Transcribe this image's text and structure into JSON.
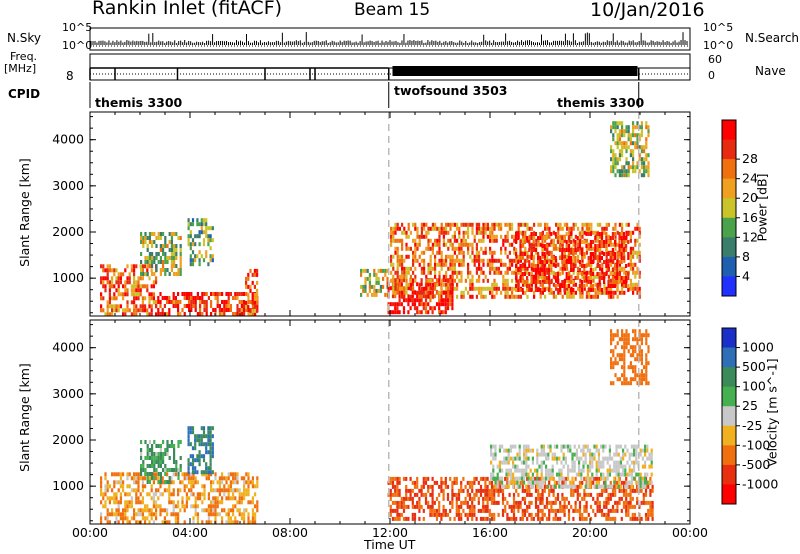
{
  "header": {
    "station": "Rankin Inlet (fitACF)",
    "beam": "Beam 15",
    "date": "10/Jan/2016"
  },
  "top_panels": {
    "nsky_label": "N.Sky",
    "nsky_ticks_left": [
      "10^5",
      "10^0"
    ],
    "nsearch_ticks_right": [
      "10^5",
      "10^0"
    ],
    "nsearch_label": "N.Search",
    "freq_label_line1": "Freq.",
    "freq_label_line2": "[MHz]",
    "freq_ticks_left": [
      "8"
    ],
    "nave_ticks_right": [
      "60",
      "0"
    ],
    "nave_label": "Nave",
    "cpid_label": "CPID",
    "cpid_segments": [
      {
        "name": "themis 3300",
        "start_h": 0,
        "end_h": 11.95
      },
      {
        "name": "twofsound 3503",
        "start_h": 11.95,
        "end_h": 21.95
      },
      {
        "name": "themis 3300",
        "start_h": 21.95,
        "end_h": 24
      }
    ]
  },
  "chart_data": [
    {
      "type": "heatmap",
      "name": "power",
      "ylabel": "Slant Range [km]",
      "xlabel": "",
      "xlim_hours": [
        0,
        24
      ],
      "ylim_km": [
        180,
        4600
      ],
      "y_ticks": [
        "1000",
        "2000",
        "3000",
        "4000"
      ],
      "x_ticks": [],
      "colorbar": {
        "label": "Power [dB]",
        "ticks": [
          "4",
          "8",
          "12",
          "16",
          "20",
          "24",
          "28"
        ],
        "range": [
          0,
          30
        ],
        "colors": [
          "#2030ff",
          "#1e5fb0",
          "#3a7d6a",
          "#4aa34a",
          "#c8c42a",
          "#f0a020",
          "#f07010",
          "#e82a10",
          "#ff0000"
        ]
      },
      "echo_regions": [
        {
          "t0": 0.4,
          "t1": 2.6,
          "r0": 180,
          "r1": 1300,
          "level": 22
        },
        {
          "t0": 2.0,
          "t1": 3.6,
          "r0": 1100,
          "r1": 2000,
          "level": 14
        },
        {
          "t0": 3.9,
          "t1": 4.9,
          "r0": 1300,
          "r1": 2300,
          "level": 12
        },
        {
          "t0": 2.6,
          "t1": 6.7,
          "r0": 180,
          "r1": 700,
          "level": 26
        },
        {
          "t0": 6.2,
          "t1": 6.7,
          "r0": 300,
          "r1": 1200,
          "level": 22
        },
        {
          "t0": 10.8,
          "t1": 11.9,
          "r0": 600,
          "r1": 1200,
          "level": 16
        },
        {
          "t0": 11.9,
          "t1": 14.5,
          "r0": 300,
          "r1": 1000,
          "level": 27
        },
        {
          "t0": 12.0,
          "t1": 22.0,
          "r0": 600,
          "r1": 2200,
          "level": 22
        },
        {
          "t0": 17.0,
          "t1": 21.5,
          "r0": 700,
          "r1": 2000,
          "level": 26
        },
        {
          "t0": 20.8,
          "t1": 22.3,
          "r0": 3200,
          "r1": 4400,
          "level": 14
        }
      ]
    },
    {
      "type": "heatmap",
      "name": "velocity",
      "ylabel": "Slant Range [km]",
      "xlabel": "Time UT",
      "xlim_hours": [
        0,
        24
      ],
      "ylim_km": [
        180,
        4600
      ],
      "y_ticks": [
        "1000",
        "2000",
        "3000",
        "4000"
      ],
      "x_ticks": [
        "00:00",
        "04:00",
        "08:00",
        "12:00",
        "16:00",
        "20:00",
        "00:00"
      ],
      "colorbar": {
        "label": "Velocity [m s^-1]",
        "ticks": [
          "1000",
          "500",
          "100",
          "25",
          "-25",
          "-100",
          "-500",
          "-1000"
        ],
        "colors": [
          "#1a2fc8",
          "#2e6fb8",
          "#3a8a5a",
          "#45b050",
          "#c8c8c8",
          "#f0b020",
          "#f07010",
          "#e83010",
          "#ff0000"
        ]
      },
      "echo_regions": [
        {
          "t0": 0.4,
          "t1": 6.7,
          "r0": 180,
          "r1": 1300,
          "level": -100
        },
        {
          "t0": 2.0,
          "t1": 3.6,
          "r0": 1100,
          "r1": 2000,
          "level": 100
        },
        {
          "t0": 3.9,
          "t1": 4.9,
          "r0": 1300,
          "r1": 2300,
          "level": 500
        },
        {
          "t0": 11.9,
          "t1": 22.5,
          "r0": 300,
          "r1": 1200,
          "level": -500
        },
        {
          "t0": 16.0,
          "t1": 22.5,
          "r0": 1000,
          "r1": 1900,
          "level": 0
        },
        {
          "t0": 20.8,
          "t1": 22.3,
          "r0": 3200,
          "r1": 4400,
          "level": -300
        }
      ]
    }
  ],
  "reference_lines_hours": [
    11.95,
    21.95
  ]
}
